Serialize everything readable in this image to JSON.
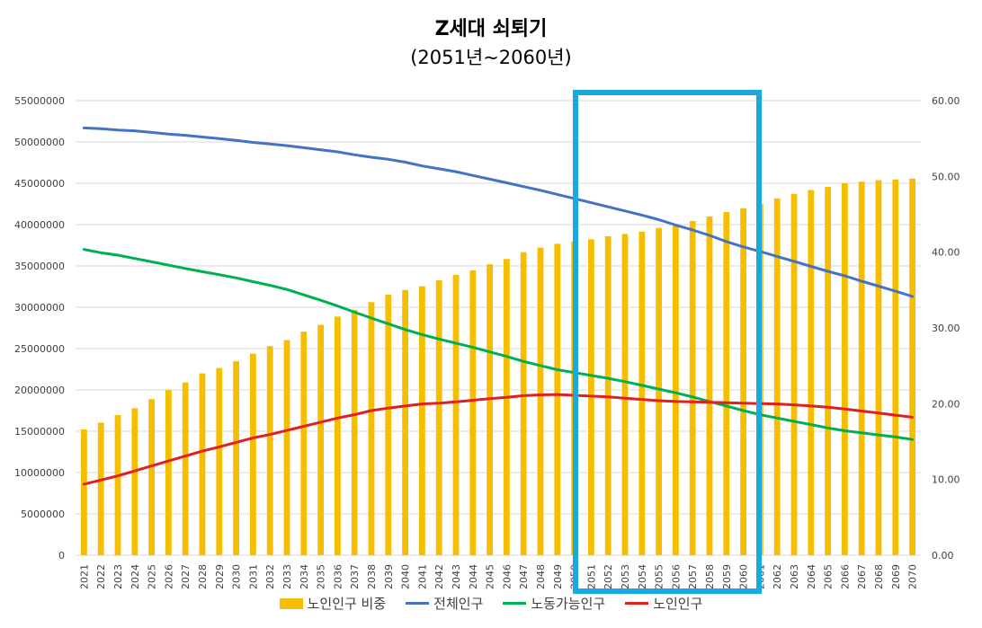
{
  "chart_data": {
    "type": "bar+line",
    "title": "Z세대 쇠퇴기",
    "subtitle": "(2051년~2060년)",
    "categories": [
      "2021",
      "2022",
      "2023",
      "2024",
      "2025",
      "2026",
      "2027",
      "2028",
      "2029",
      "2030",
      "2031",
      "2032",
      "2033",
      "2034",
      "2035",
      "2036",
      "2037",
      "2038",
      "2039",
      "2040",
      "2041",
      "2042",
      "2043",
      "2044",
      "2045",
      "2046",
      "2047",
      "2048",
      "2049",
      "2050",
      "2051",
      "2052",
      "2053",
      "2054",
      "2055",
      "2056",
      "2057",
      "2058",
      "2059",
      "2060",
      "2061",
      "2062",
      "2063",
      "2064",
      "2065",
      "2066",
      "2067",
      "2068",
      "2069",
      "2070"
    ],
    "left_axis": {
      "min": 0,
      "max": 55000000,
      "step": 5000000,
      "ticks": [
        "0",
        "5000000",
        "10000000",
        "15000000",
        "20000000",
        "25000000",
        "30000000",
        "35000000",
        "40000000",
        "45000000",
        "50000000",
        "55000000"
      ]
    },
    "right_axis": {
      "min": 0,
      "max": 60,
      "step": 10,
      "ticks": [
        "0.00",
        "10.00",
        "20.00",
        "30.00",
        "40.00",
        "50.00",
        "60.00"
      ]
    },
    "gridlines": true,
    "legend_position": "bottom",
    "series": [
      {
        "name": "노인인구 비중",
        "type": "bar",
        "axis": "right",
        "color": "#F5BE00",
        "values": [
          16.6,
          17.5,
          18.5,
          19.4,
          20.6,
          21.8,
          22.8,
          24.0,
          24.7,
          25.6,
          26.6,
          27.6,
          28.4,
          29.5,
          30.4,
          31.5,
          32.4,
          33.4,
          34.4,
          35.0,
          35.5,
          36.3,
          37.0,
          37.6,
          38.4,
          39.1,
          40.0,
          40.6,
          41.1,
          41.4,
          41.7,
          42.1,
          42.4,
          42.7,
          43.2,
          43.5,
          44.1,
          44.7,
          45.3,
          45.8,
          46.4,
          47.1,
          47.7,
          48.2,
          48.6,
          49.1,
          49.3,
          49.5,
          49.6,
          49.7
        ]
      },
      {
        "name": "전체인구",
        "type": "line",
        "axis": "left",
        "color": "#4472C4",
        "values": [
          51700000,
          51600000,
          51450000,
          51350000,
          51150000,
          50950000,
          50800000,
          50600000,
          50400000,
          50200000,
          49950000,
          49750000,
          49550000,
          49300000,
          49050000,
          48800000,
          48450000,
          48150000,
          47900000,
          47550000,
          47100000,
          46750000,
          46400000,
          45950000,
          45500000,
          45050000,
          44600000,
          44150000,
          43650000,
          43150000,
          42650000,
          42150000,
          41650000,
          41150000,
          40600000,
          39950000,
          39350000,
          38700000,
          37950000,
          37300000,
          36750000,
          36150000,
          35550000,
          34950000,
          34350000,
          33800000,
          33150000,
          32550000,
          31950000,
          31300000
        ]
      },
      {
        "name": "노동가능인구",
        "type": "line",
        "axis": "left",
        "color": "#00B050",
        "values": [
          37000000,
          36600000,
          36300000,
          35900000,
          35500000,
          35100000,
          34700000,
          34300000,
          33950000,
          33550000,
          33100000,
          32650000,
          32150000,
          31500000,
          30850000,
          30150000,
          29400000,
          28700000,
          28000000,
          27300000,
          26700000,
          26150000,
          25650000,
          25150000,
          24600000,
          24050000,
          23450000,
          22950000,
          22450000,
          22100000,
          21750000,
          21400000,
          21000000,
          20550000,
          20100000,
          19650000,
          19150000,
          18600000,
          18050000,
          17500000,
          17000000,
          16600000,
          16200000,
          15800000,
          15400000,
          15050000,
          14800000,
          14550000,
          14300000,
          14000000
        ]
      },
      {
        "name": "노인인구",
        "type": "line",
        "axis": "left",
        "color": "#E0201E",
        "values": [
          8600000,
          9100000,
          9600000,
          10200000,
          10800000,
          11400000,
          12000000,
          12600000,
          13100000,
          13650000,
          14200000,
          14600000,
          15100000,
          15600000,
          16100000,
          16600000,
          17000000,
          17500000,
          17800000,
          18050000,
          18300000,
          18400000,
          18550000,
          18750000,
          18950000,
          19100000,
          19300000,
          19400000,
          19450000,
          19350000,
          19250000,
          19150000,
          19000000,
          18850000,
          18700000,
          18600000,
          18550000,
          18500000,
          18450000,
          18400000,
          18350000,
          18300000,
          18200000,
          18050000,
          17900000,
          17700000,
          17450000,
          17200000,
          16950000,
          16700000
        ]
      }
    ],
    "highlight_box": {
      "from": "2051",
      "to": "2060",
      "color": "#1BA8E0"
    }
  }
}
